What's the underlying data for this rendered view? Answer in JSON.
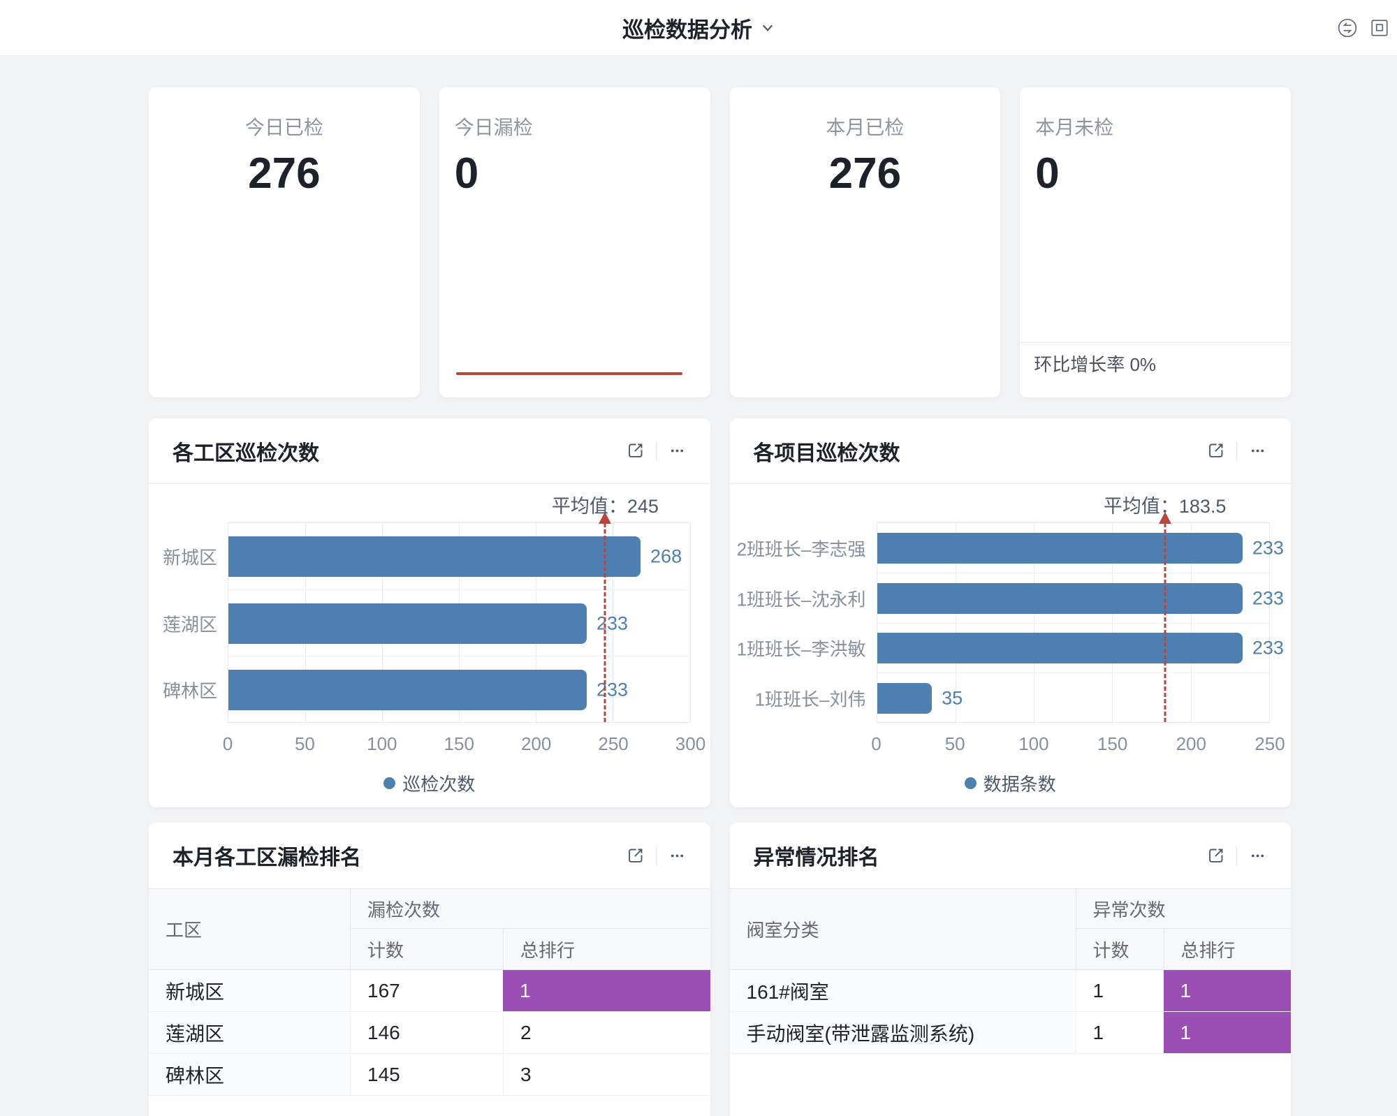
{
  "header": {
    "title": "巡检数据分析",
    "icons": [
      "chevron-down-icon",
      "sync-swap-icon",
      "window-icon"
    ]
  },
  "card_action_icons": [
    "external-link-icon",
    "more-ellipsis-icon"
  ],
  "colors": {
    "bar_blue": "#4d80b0",
    "rank_highlight_purple": "#9b4fb5",
    "alert_red": "#b9453c",
    "background": "#f2f3f5"
  },
  "stats": [
    {
      "label": "今日已检",
      "value": "276"
    },
    {
      "label": "今日漏检",
      "value": "0"
    },
    {
      "label": "本月已检",
      "value": "276"
    },
    {
      "label": "本月未检",
      "value": "0",
      "growth_text": "环比增长率 0%"
    }
  ],
  "chart_data": [
    {
      "type": "bar",
      "orientation": "horizontal",
      "title": "各工区巡检次数",
      "categories": [
        "新城区",
        "莲湖区",
        "碑林区"
      ],
      "values": [
        268,
        233,
        233
      ],
      "xlim": [
        0,
        300
      ],
      "xticks": [
        0,
        50,
        100,
        150,
        200,
        250,
        300
      ],
      "average": 245,
      "average_label": "平均值：245",
      "legend": [
        "巡检次数"
      ],
      "legend_position": "bottom",
      "grid": true,
      "bar_color": "#4d80b0",
      "avg_line_color": "#b9453c"
    },
    {
      "type": "bar",
      "orientation": "horizontal",
      "title": "各项目巡检次数",
      "categories": [
        "2班班长–李志强",
        "1班班长–沈永利",
        "1班班长–李洪敏",
        "1班班长–刘伟"
      ],
      "values": [
        233,
        233,
        233,
        35
      ],
      "xlim": [
        0,
        250
      ],
      "xticks": [
        0,
        50,
        100,
        150,
        200,
        250
      ],
      "average": 183.5,
      "average_label": "平均值：183.5",
      "legend": [
        "数据条数"
      ],
      "legend_position": "bottom",
      "grid": true,
      "bar_color": "#4d80b0",
      "avg_line_color": "#b9453c"
    }
  ],
  "tables": [
    {
      "title": "本月各工区漏检排名",
      "col1_header": "工区",
      "group_header": "漏检次数",
      "sub_headers": [
        "计数",
        "总排行"
      ],
      "rows": [
        {
          "name": "新城区",
          "count": "167",
          "rank": "1",
          "rank_highlight": true
        },
        {
          "name": "莲湖区",
          "count": "146",
          "rank": "2",
          "rank_highlight": false
        },
        {
          "name": "碑林区",
          "count": "145",
          "rank": "3",
          "rank_highlight": false
        }
      ]
    },
    {
      "title": "异常情况排名",
      "col1_header": "阀室分类",
      "group_header": "异常次数",
      "sub_headers": [
        "计数",
        "总排行"
      ],
      "rows": [
        {
          "name": "161#阀室",
          "count": "1",
          "rank": "1",
          "rank_highlight": true
        },
        {
          "name": "手动阀室(带泄露监测系统)",
          "count": "1",
          "rank": "1",
          "rank_highlight": true
        }
      ]
    }
  ]
}
